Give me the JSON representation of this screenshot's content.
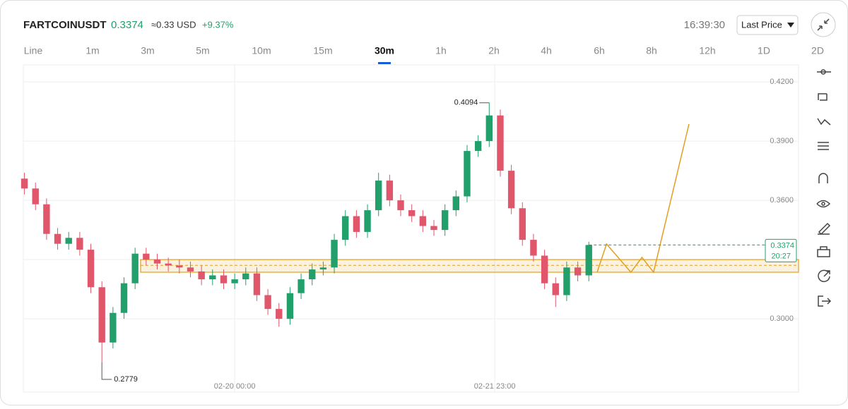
{
  "header": {
    "symbol": "FARTCOINUSDT",
    "price": "0.3374",
    "usd_approx": "≈0.33 USD",
    "change": "+9.37%",
    "time": "16:39:30",
    "price_type": "Last Price"
  },
  "intervals": [
    "Line",
    "1m",
    "3m",
    "5m",
    "10m",
    "15m",
    "30m",
    "1h",
    "2h",
    "4h",
    "6h",
    "8h",
    "12h",
    "1D",
    "2D"
  ],
  "active_interval_index": 6,
  "chart_data": {
    "type": "candlestick",
    "x": [
      -38,
      -36,
      -34,
      -32,
      -30,
      -28,
      -26,
      -24,
      -22,
      -20,
      -18,
      -16,
      -14,
      -12,
      -10,
      -8,
      -6,
      -4,
      -2,
      0,
      2,
      4,
      6,
      8,
      10,
      12,
      14,
      16,
      18,
      20,
      22,
      24,
      26,
      28,
      30,
      32,
      34,
      36,
      38,
      40,
      42,
      44,
      46,
      48,
      50,
      52,
      54,
      56,
      58,
      60,
      62,
      64
    ],
    "open": [
      0.371,
      0.366,
      0.358,
      0.343,
      0.338,
      0.341,
      0.335,
      0.316,
      0.288,
      0.303,
      0.318,
      0.333,
      0.33,
      0.328,
      0.327,
      0.326,
      0.324,
      0.32,
      0.322,
      0.318,
      0.32,
      0.323,
      0.312,
      0.305,
      0.3,
      0.313,
      0.32,
      0.325,
      0.326,
      0.34,
      0.352,
      0.344,
      0.355,
      0.37,
      0.36,
      0.355,
      0.352,
      0.347,
      0.345,
      0.355,
      0.362,
      0.385,
      0.39,
      0.403,
      0.375,
      0.356,
      0.34,
      0.332,
      0.318,
      0.312,
      0.326,
      0.322
    ],
    "high": [
      0.374,
      0.369,
      0.361,
      0.346,
      0.344,
      0.344,
      0.338,
      0.319,
      0.306,
      0.321,
      0.336,
      0.336,
      0.333,
      0.331,
      0.33,
      0.329,
      0.327,
      0.325,
      0.325,
      0.323,
      0.326,
      0.326,
      0.315,
      0.308,
      0.316,
      0.323,
      0.328,
      0.329,
      0.343,
      0.355,
      0.355,
      0.358,
      0.374,
      0.373,
      0.363,
      0.358,
      0.355,
      0.35,
      0.358,
      0.365,
      0.388,
      0.393,
      0.4094,
      0.406,
      0.378,
      0.359,
      0.343,
      0.335,
      0.321,
      0.329,
      0.329,
      0.339
    ],
    "low": [
      0.363,
      0.355,
      0.34,
      0.335,
      0.335,
      0.332,
      0.313,
      0.2779,
      0.285,
      0.3,
      0.315,
      0.327,
      0.325,
      0.324,
      0.323,
      0.321,
      0.317,
      0.317,
      0.315,
      0.315,
      0.317,
      0.309,
      0.302,
      0.296,
      0.297,
      0.31,
      0.317,
      0.322,
      0.323,
      0.337,
      0.341,
      0.341,
      0.352,
      0.357,
      0.352,
      0.349,
      0.344,
      0.342,
      0.342,
      0.352,
      0.359,
      0.382,
      0.387,
      0.372,
      0.353,
      0.337,
      0.329,
      0.315,
      0.306,
      0.309,
      0.319,
      0.319
    ],
    "close": [
      0.366,
      0.358,
      0.343,
      0.338,
      0.341,
      0.335,
      0.316,
      0.288,
      0.303,
      0.318,
      0.333,
      0.33,
      0.328,
      0.327,
      0.326,
      0.324,
      0.32,
      0.322,
      0.318,
      0.32,
      0.323,
      0.312,
      0.305,
      0.3,
      0.313,
      0.32,
      0.325,
      0.326,
      0.34,
      0.352,
      0.344,
      0.355,
      0.37,
      0.36,
      0.355,
      0.352,
      0.347,
      0.345,
      0.355,
      0.362,
      0.385,
      0.39,
      0.403,
      0.375,
      0.356,
      0.34,
      0.332,
      0.318,
      0.312,
      0.326,
      0.322,
      0.3374
    ],
    "up_color": "#22a06b",
    "down_color": "#e0566b",
    "xlim": [
      -38.2,
      101.9
    ],
    "ylim": [
      0.2629,
      0.4286
    ],
    "yticks": [
      {
        "value": 0.42,
        "label": "0.4200"
      },
      {
        "value": 0.39,
        "label": "0.3900"
      },
      {
        "value": 0.36,
        "label": "0.3600"
      },
      {
        "value": 0.33,
        "label": ""
      },
      {
        "value": 0.3,
        "label": "0.3000"
      }
    ],
    "xticks": [
      {
        "value": 0,
        "label": "02-20 00:00"
      },
      {
        "value": 47,
        "label": "02-21 23:00"
      }
    ],
    "grid": true,
    "high_marker": {
      "x": 46,
      "value": 0.4094
    },
    "low_marker": {
      "x": -24,
      "value": 0.2779
    },
    "last_price": {
      "value": 0.3374,
      "countdown": "20:27",
      "color": "#22a06b"
    },
    "zone": {
      "x_start": -17,
      "low": 0.3236,
      "high": 0.33,
      "mid": 0.3271,
      "color": "#e0a020"
    },
    "projection": {
      "x": [
        65.5,
        67.2,
        71.6,
        73.6,
        75.7,
        82.1
      ],
      "values": [
        0.3236,
        0.3379,
        0.3236,
        0.3311,
        0.3236,
        0.3986
      ],
      "color": "#e0a020"
    }
  }
}
